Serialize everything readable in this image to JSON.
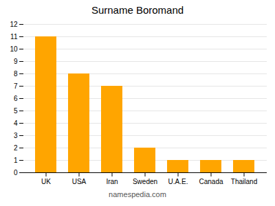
{
  "chart_data": {
    "type": "bar",
    "title": "Surname Boromand",
    "categories": [
      "UK",
      "USA",
      "Iran",
      "Sweden",
      "U.A.E.",
      "Canada",
      "Thailand"
    ],
    "values": [
      11,
      8,
      7,
      2,
      1,
      1,
      1
    ],
    "color": "#FFA500",
    "ylim": [
      0,
      12
    ],
    "yticks": [
      0,
      1,
      2,
      3,
      4,
      5,
      6,
      7,
      8,
      9,
      10,
      11,
      12
    ],
    "grid": true,
    "caption": "namespedia.com"
  }
}
